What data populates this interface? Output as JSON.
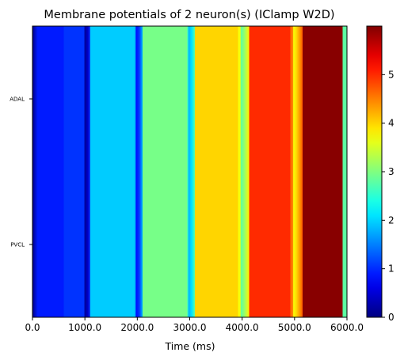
{
  "chart_data": {
    "type": "heatmap",
    "title": "Membrane potentials of 2 neuron(s) (IClamp W2D)",
    "xlabel": "Time (ms)",
    "ylabel": "",
    "xlim": [
      0,
      6000
    ],
    "x_ticks": [
      "0.0",
      "1000.0",
      "2000.0",
      "3000.0",
      "4000.0",
      "5000.0",
      "6000.0"
    ],
    "rows": [
      "ADAL",
      "PVCL"
    ],
    "colormap": "jet",
    "colorbar": {
      "range": [
        0,
        6
      ],
      "ticks": [
        "0",
        "1",
        "2",
        "3",
        "4",
        "5"
      ]
    },
    "segments": [
      {
        "x0": 0,
        "x1": 100,
        "value": 0.05,
        "shape": "rise"
      },
      {
        "x0": 100,
        "x1": 600,
        "value": 0.9
      },
      {
        "x0": 600,
        "x1": 1100,
        "value": 1.05,
        "dip_at": 1000
      },
      {
        "x0": 1100,
        "x1": 1950,
        "value": 1.95
      },
      {
        "x0": 1950,
        "x1": 2100,
        "value": 1.7,
        "dip_at": 1980
      },
      {
        "x0": 2100,
        "x1": 2950,
        "value": 2.95
      },
      {
        "x0": 2950,
        "x1": 3100,
        "value": 2.7,
        "dip_at": 2980
      },
      {
        "x0": 3100,
        "x1": 3920,
        "value": 4.0
      },
      {
        "x0": 3920,
        "x1": 4130,
        "value": 3.7,
        "dip_at": 3980
      },
      {
        "x0": 4130,
        "x1": 4920,
        "value": 5.0
      },
      {
        "x0": 4920,
        "x1": 5150,
        "value": 4.6,
        "dip_at": 4980
      },
      {
        "x0": 5150,
        "x1": 5920,
        "value": 5.95
      },
      {
        "x0": 5920,
        "x1": 6000,
        "value": 2.8
      }
    ]
  }
}
